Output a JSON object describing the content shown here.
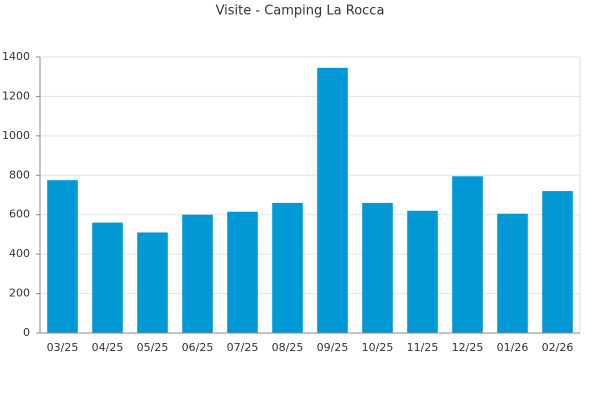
{
  "chart_data": {
    "type": "bar",
    "title": "Visite - Camping La Rocca",
    "categories": [
      "03/25",
      "04/25",
      "05/25",
      "06/25",
      "07/25",
      "08/25",
      "09/25",
      "10/25",
      "11/25",
      "12/25",
      "01/26",
      "02/26"
    ],
    "values": [
      775,
      560,
      510,
      600,
      615,
      660,
      1345,
      660,
      620,
      795,
      605,
      720
    ],
    "color": "#0099d6",
    "ylim": [
      0,
      1400
    ],
    "yticks": [
      0,
      200,
      400,
      600,
      800,
      1000,
      1200,
      1400
    ],
    "grid": true
  }
}
